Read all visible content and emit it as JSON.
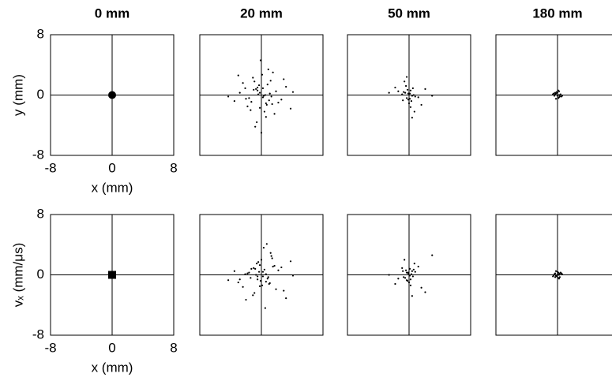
{
  "chart_data": [
    {
      "type": "scatter",
      "title": "0 mm",
      "xlabel": "x (mm)",
      "ylabel": "y (mm)",
      "xlim": [
        -8,
        8
      ],
      "ylim": [
        -8,
        8
      ],
      "xticks": [
        -8,
        0,
        8
      ],
      "yticks": [
        -8,
        0,
        8
      ],
      "marker": "circle",
      "color": "#000000",
      "x": [
        0
      ],
      "values": [
        0
      ]
    },
    {
      "type": "scatter",
      "title": "20 mm",
      "xlim": [
        -8,
        8
      ],
      "ylim": [
        -8,
        8
      ],
      "marker": "dot",
      "color": "#000000",
      "x": [
        0.2,
        -0.5,
        1.1,
        -1.3,
        0.8,
        -0.2,
        1.9,
        -2.1,
        0.4,
        -0.9,
        2.6,
        -2.8,
        0.1,
        1.4,
        -1.6,
        0.6,
        -0.4,
        3.2,
        -3.5,
        0.9,
        -1.1,
        1.7,
        -0.7,
        0.3,
        -0.1,
        2.2,
        -2.4,
        1.2,
        -1.8,
        0.5,
        -0.6,
        4.1,
        -4.3,
        0.0,
        1.0,
        -1.0,
        2.9,
        -0.3,
        0.7,
        -1.4,
        1.5,
        -2.0,
        0.2,
        -0.8,
        3.8,
        -3.0,
        1.3,
        -0.5,
        0.6,
        -0.2
      ],
      "values": [
        -0.3,
        0.6,
        0.2,
        -0.9,
        1.4,
        -1.7,
        0.5,
        0.9,
        -2.2,
        1.8,
        -0.6,
        0.3,
        2.7,
        -1.2,
        -0.4,
        -2.9,
        0.1,
        1.1,
        -0.8,
        3.4,
        2.3,
        -2.5,
        0.8,
        -0.1,
        4.6,
        -1.0,
        1.6,
        1.9,
        -1.5,
        0.0,
        -3.6,
        0.4,
        -0.2,
        -5.0,
        -0.7,
        0.7,
        2.1,
        1.3,
        -1.3,
        -2.0,
        3.0,
        -0.5,
        0.9,
        -4.2,
        -1.8,
        2.6,
        -0.2,
        1.0,
        -1.1,
        0.3
      ]
    },
    {
      "type": "scatter",
      "title": "50 mm",
      "xlim": [
        -8,
        8
      ],
      "ylim": [
        -8,
        8
      ],
      "marker": "dot",
      "color": "#000000",
      "x": [
        0.1,
        -0.3,
        0.4,
        -0.5,
        0.2,
        -0.1,
        0.6,
        -0.7,
        0.3,
        -0.2,
        0.8,
        -0.9,
        0.0,
        0.5,
        -0.4,
        1.2,
        -1.4,
        0.2,
        -0.6,
        2.1,
        -2.6,
        0.7,
        -0.3,
        0.1,
        3.0,
        -1.8,
        0.4,
        -0.1,
        1.6,
        -0.8
      ],
      "values": [
        0.2,
        -0.4,
        -0.1,
        0.3,
        0.6,
        -0.6,
        0.0,
        0.4,
        -0.8,
        0.7,
        -0.2,
        0.1,
        -1.1,
        0.9,
        1.2,
        -0.3,
        0.5,
        -1.6,
        1.8,
        0.8,
        0.3,
        -2.2,
        2.4,
        -0.5,
        -0.1,
        1.0,
        -3.0,
        0.2,
        -1.3,
        -0.7
      ]
    },
    {
      "type": "scatter",
      "title": "180 mm",
      "xlim": [
        -8,
        8
      ],
      "ylim": [
        -8,
        8
      ],
      "marker": "dot",
      "color": "#000000",
      "x": [
        0.1,
        -0.2,
        0.3,
        -0.3,
        0.0,
        0.2,
        -0.1,
        0.4,
        -0.4,
        0.1,
        -0.5,
        0.5,
        0.2,
        -0.2,
        0.0,
        0.3,
        -0.3,
        0.6,
        -0.6,
        0.1
      ],
      "values": [
        0.0,
        0.2,
        -0.2,
        0.1,
        0.3,
        -0.3,
        0.4,
        0.1,
        -0.1,
        -0.4,
        0.2,
        -0.2,
        0.5,
        -0.5,
        -0.1,
        0.0,
        0.3,
        -0.1,
        0.1,
        0.6
      ]
    },
    {
      "type": "scatter",
      "xlabel": "x (mm)",
      "ylabel": "vₓ (mm/μs)",
      "xlim": [
        -8,
        8
      ],
      "ylim": [
        -8,
        8
      ],
      "xticks": [
        -8,
        0,
        8
      ],
      "yticks": [
        -8,
        0,
        8
      ],
      "marker": "square",
      "color": "#000000",
      "x": [
        0
      ],
      "values": [
        0
      ]
    },
    {
      "type": "scatter",
      "xlim": [
        -8,
        8
      ],
      "ylim": [
        -8,
        8
      ],
      "marker": "dot",
      "color": "#000000",
      "x": [
        0.2,
        -0.5,
        1.1,
        -1.3,
        0.8,
        -0.2,
        1.9,
        -2.1,
        0.4,
        -0.9,
        2.6,
        -2.8,
        0.1,
        1.4,
        -1.6,
        0.6,
        -0.4,
        3.2,
        -3.5,
        0.9,
        -1.1,
        1.7,
        -0.7,
        0.3,
        -0.1,
        2.2,
        -2.4,
        1.2,
        -1.8,
        0.5,
        -0.6,
        4.1,
        -4.3,
        0.0,
        1.0,
        -1.0,
        2.9,
        -0.3,
        0.7,
        -1.4,
        1.5,
        -2.0,
        0.2,
        -0.8,
        3.8,
        -3.0,
        1.3,
        -0.5,
        0.6,
        -0.2
      ],
      "values": [
        0.4,
        -0.2,
        -1.1,
        0.8,
        -0.5,
        1.3,
        -1.9,
        0.1,
        0.7,
        -2.4,
        1.0,
        -0.6,
        -1.4,
        2.2,
        0.3,
        -0.9,
        1.7,
        -3.1,
        0.5,
        -0.3,
        -2.7,
        1.2,
        0.0,
        3.6,
        -0.8,
        0.6,
        -1.6,
        2.9,
        0.2,
        -4.4,
        1.5,
        -0.1,
        -0.7,
        2.0,
        -1.2,
        0.9,
        -2.1,
        0.4,
        4.1,
        -0.4,
        1.1,
        -3.3,
        -0.2,
        0.8,
        1.8,
        -1.0,
        2.5,
        -0.6,
        0.1,
        -1.5
      ]
    },
    {
      "type": "scatter",
      "xlim": [
        -8,
        8
      ],
      "ylim": [
        -8,
        8
      ],
      "marker": "dot",
      "color": "#000000",
      "x": [
        0.1,
        -0.3,
        0.4,
        -0.5,
        0.2,
        -0.1,
        0.6,
        -0.7,
        0.3,
        -0.2,
        0.8,
        -0.9,
        0.0,
        0.5,
        -0.4,
        1.2,
        -1.4,
        0.2,
        -0.6,
        2.1,
        -2.6,
        0.7,
        -0.3,
        0.1,
        3.0,
        -1.8,
        0.4,
        -0.1,
        1.6,
        -0.8
      ],
      "values": [
        -0.1,
        0.3,
        0.5,
        -0.4,
        -0.6,
        0.2,
        0.7,
        -0.3,
        0.1,
        -0.8,
        0.4,
        0.9,
        -1.0,
        -0.2,
        0.6,
        1.1,
        -0.5,
        -1.4,
        2.0,
        -2.3,
        0.0,
        1.5,
        -0.7,
        0.8,
        2.6,
        -1.2,
        -2.8,
        0.3,
        -1.7,
        0.5
      ]
    },
    {
      "type": "scatter",
      "xlim": [
        -8,
        8
      ],
      "ylim": [
        -8,
        8
      ],
      "marker": "dot",
      "color": "#000000",
      "x": [
        0.1,
        -0.2,
        0.3,
        -0.3,
        0.0,
        0.2,
        -0.1,
        0.4,
        -0.4,
        0.1,
        -0.5,
        0.5,
        0.2,
        -0.2,
        0.0,
        0.3,
        -0.3,
        0.6,
        -0.6,
        0.1
      ],
      "values": [
        0.1,
        -0.1,
        0.2,
        -0.3,
        0.4,
        0.0,
        -0.2,
        0.3,
        0.1,
        -0.4,
        -0.1,
        0.2,
        -0.5,
        0.5,
        0.0,
        -0.3,
        0.2,
        0.1,
        -0.2,
        0.3
      ]
    }
  ]
}
